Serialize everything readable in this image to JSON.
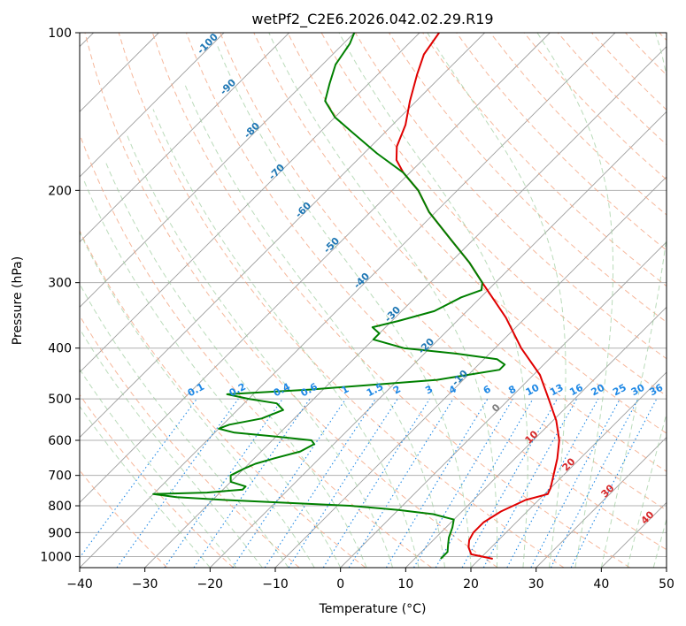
{
  "chart_data": {
    "type": "line",
    "title": "wetPf2_C2E6.2026.042.02.29.R19",
    "xlabel": "Temperature (°C)",
    "ylabel": "Pressure (hPa)",
    "xlim": [
      -40,
      50
    ],
    "ylim": [
      1050,
      100
    ],
    "yscale": "log",
    "x_ticks": [
      -40,
      -30,
      -20,
      -10,
      0,
      10,
      20,
      30,
      40,
      50
    ],
    "y_ticks": [
      100,
      200,
      300,
      400,
      500,
      600,
      700,
      800,
      900,
      1000
    ],
    "grid": true,
    "colors": {
      "temperature": "#e00000",
      "dewpoint": "#008000",
      "dry_adiabats": "#f4a582",
      "moist_adiabats": "#9ccc9c",
      "mixing_ratio": "#1e88e5",
      "isotherms": "#9e9e9e",
      "grid": "#b0b0b0"
    },
    "series": [
      {
        "key": "temperature",
        "points": [
          [
            1010,
            22
          ],
          [
            990,
            18
          ],
          [
            960,
            16.5
          ],
          [
            930,
            15.5
          ],
          [
            900,
            15
          ],
          [
            860,
            15
          ],
          [
            820,
            16
          ],
          [
            780,
            18
          ],
          [
            760,
            20.5
          ],
          [
            740,
            20
          ],
          [
            700,
            18.5
          ],
          [
            650,
            16.5
          ],
          [
            600,
            14
          ],
          [
            550,
            10.5
          ],
          [
            500,
            6
          ],
          [
            450,
            1
          ],
          [
            400,
            -6
          ],
          [
            350,
            -13
          ],
          [
            300,
            -22
          ],
          [
            275,
            -27
          ],
          [
            250,
            -33
          ],
          [
            220,
            -41
          ],
          [
            200,
            -46
          ],
          [
            185,
            -51
          ],
          [
            175,
            -54
          ],
          [
            165,
            -56
          ],
          [
            150,
            -58
          ],
          [
            135,
            -61
          ],
          [
            120,
            -64
          ],
          [
            110,
            -66
          ],
          [
            100,
            -67
          ]
        ]
      },
      {
        "key": "dewpoint",
        "points": [
          [
            1010,
            14
          ],
          [
            980,
            14
          ],
          [
            950,
            13
          ],
          [
            920,
            12
          ],
          [
            880,
            11
          ],
          [
            850,
            10
          ],
          [
            830,
            6
          ],
          [
            815,
            0
          ],
          [
            800,
            -8
          ],
          [
            790,
            -18
          ],
          [
            780,
            -28
          ],
          [
            770,
            -36
          ],
          [
            760,
            -40
          ],
          [
            755,
            -32
          ],
          [
            745,
            -27
          ],
          [
            735,
            -27
          ],
          [
            720,
            -30
          ],
          [
            700,
            -31
          ],
          [
            680,
            -30
          ],
          [
            665,
            -29
          ],
          [
            650,
            -27
          ],
          [
            630,
            -24
          ],
          [
            610,
            -23
          ],
          [
            600,
            -24
          ],
          [
            590,
            -30
          ],
          [
            580,
            -37
          ],
          [
            570,
            -40
          ],
          [
            560,
            -39
          ],
          [
            545,
            -35
          ],
          [
            525,
            -33
          ],
          [
            510,
            -35
          ],
          [
            500,
            -40
          ],
          [
            490,
            -44
          ],
          [
            480,
            -32
          ],
          [
            460,
            -14
          ],
          [
            440,
            -6
          ],
          [
            430,
            -6
          ],
          [
            420,
            -8
          ],
          [
            410,
            -15
          ],
          [
            400,
            -24
          ],
          [
            385,
            -30
          ],
          [
            375,
            -30
          ],
          [
            365,
            -32
          ],
          [
            355,
            -29
          ],
          [
            340,
            -25
          ],
          [
            320,
            -23
          ],
          [
            310,
            -21
          ],
          [
            300,
            -22
          ],
          [
            275,
            -27
          ],
          [
            250,
            -33
          ],
          [
            220,
            -41
          ],
          [
            200,
            -46
          ],
          [
            185,
            -51
          ],
          [
            170,
            -58
          ],
          [
            155,
            -65
          ],
          [
            145,
            -70
          ],
          [
            135,
            -74
          ],
          [
            125,
            -76
          ],
          [
            115,
            -78
          ],
          [
            105,
            -79
          ],
          [
            100,
            -80
          ]
        ]
      }
    ],
    "isotherm_labels": [
      {
        "text": "-100",
        "value": -100
      },
      {
        "text": "-90",
        "value": -90
      },
      {
        "text": "-80",
        "value": -80
      },
      {
        "text": "-70",
        "value": -70
      },
      {
        "text": "-60",
        "value": -60
      },
      {
        "text": "-50",
        "value": -50
      },
      {
        "text": "-40",
        "value": -40
      },
      {
        "text": "-30",
        "value": -30
      },
      {
        "text": "-20",
        "value": -20
      },
      {
        "text": "-10",
        "value": -10
      },
      {
        "text": "0",
        "value": 0
      },
      {
        "text": "10",
        "value": 10
      },
      {
        "text": "20",
        "value": 20
      },
      {
        "text": "30",
        "value": 30
      },
      {
        "text": "40",
        "value": 40
      }
    ],
    "mixing_ratio_labels": [
      "0.1",
      "0.2",
      "0.4",
      "0.6",
      "1",
      "1.5",
      "2",
      "3",
      "4",
      "6",
      "8",
      "10",
      "13",
      "16",
      "20",
      "25",
      "30",
      "36"
    ]
  }
}
